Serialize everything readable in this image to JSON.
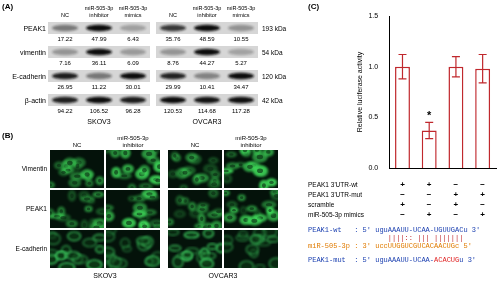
{
  "panel_a": {
    "label": "(A)",
    "conditions": [
      "NC",
      "miR-505-3p inhibitor",
      "miR-505-3p mimics"
    ],
    "cell_lines": [
      "SKOV3",
      "OVCAR3"
    ],
    "rows": [
      {
        "protein": "PEAK1",
        "size": "193 kDa",
        "values": [
          [
            17.22,
            47.99,
            6.43
          ],
          [
            35.76,
            48.59,
            10.55
          ]
        ]
      },
      {
        "protein": "vimentin",
        "size": "54 kDa",
        "values": [
          [
            7.16,
            36.11,
            6.09
          ],
          [
            8.76,
            44.27,
            5.27
          ]
        ]
      },
      {
        "protein": "E-cadherin",
        "size": "120 kDa",
        "values": [
          [
            26.95,
            11.22,
            30.01
          ],
          [
            29.99,
            10.41,
            34.47
          ]
        ]
      },
      {
        "protein": "β-actin",
        "size": "42 kDa",
        "values": [
          [
            94.22,
            106.52,
            96.28
          ],
          [
            120.53,
            114.68,
            117.28
          ]
        ]
      }
    ]
  },
  "panel_b": {
    "label": "(B)",
    "conditions": [
      "NC",
      "miR-505-3p inhibitor"
    ],
    "cell_lines": [
      "SKOV3",
      "OVCAR3"
    ],
    "stains": [
      "Vimentin",
      "PEAK1",
      "E-cadherin"
    ]
  },
  "chart_data": {
    "panel_label": "(C)",
    "type": "bar",
    "categories": [
      null,
      null,
      null,
      null
    ],
    "values": [
      1.0,
      0.37,
      1.0,
      0.98
    ],
    "errors": [
      0.12,
      0.08,
      0.1,
      0.14
    ],
    "annotations": [
      null,
      "*",
      null,
      null
    ],
    "color": "#c0282d",
    "ylim": [
      0,
      1.5
    ],
    "yticks": [
      {
        "value": 0,
        "label": "0.0"
      },
      {
        "value": 0.5,
        "label": "0.5"
      },
      {
        "value": 1,
        "label": "1.0"
      },
      {
        "value": 1.5,
        "label": "1.5"
      }
    ],
    "y_label": "Relative luciferase activity",
    "grid": false,
    "tick_labels": "y",
    "conditions": [
      {
        "name": "PEAK1 3'UTR-wt",
        "marks": [
          "+",
          "+",
          "−",
          "−"
        ]
      },
      {
        "name": "PEAK1 3'UTR-mut",
        "marks": [
          "−",
          "−",
          "+",
          "+"
        ]
      },
      {
        "name": "scramble",
        "marks": [
          "+",
          "−",
          "+",
          "−"
        ]
      },
      {
        "name": "miR-505-3p mimics",
        "marks": [
          "−",
          "+",
          "−",
          "+"
        ]
      }
    ]
  },
  "sequences": {
    "wt": [
      {
        "text": "PEAK1-wt   : 5' uguAAAUU-UCAA-UGUUGACu 3'",
        "color": "#1a3fb0"
      }
    ],
    "pairing": {
      "text": "||||:: ||| |||||||",
      "color": "#c0282d"
    },
    "mirna": [
      {
        "text": "miR-505-3p : 3' uccUUGGUCGUCACAACUGc 5'",
        "color": "#e07b00"
      }
    ],
    "mut": [
      {
        "text": "PEAK1-mut  : 5' uguAAAUU-UCAA-",
        "color": "#1a3fb0"
      },
      {
        "text": "ACACUG",
        "color": "#e02020"
      },
      {
        "text": "u 3'",
        "color": "#1a3fb0"
      }
    ]
  }
}
